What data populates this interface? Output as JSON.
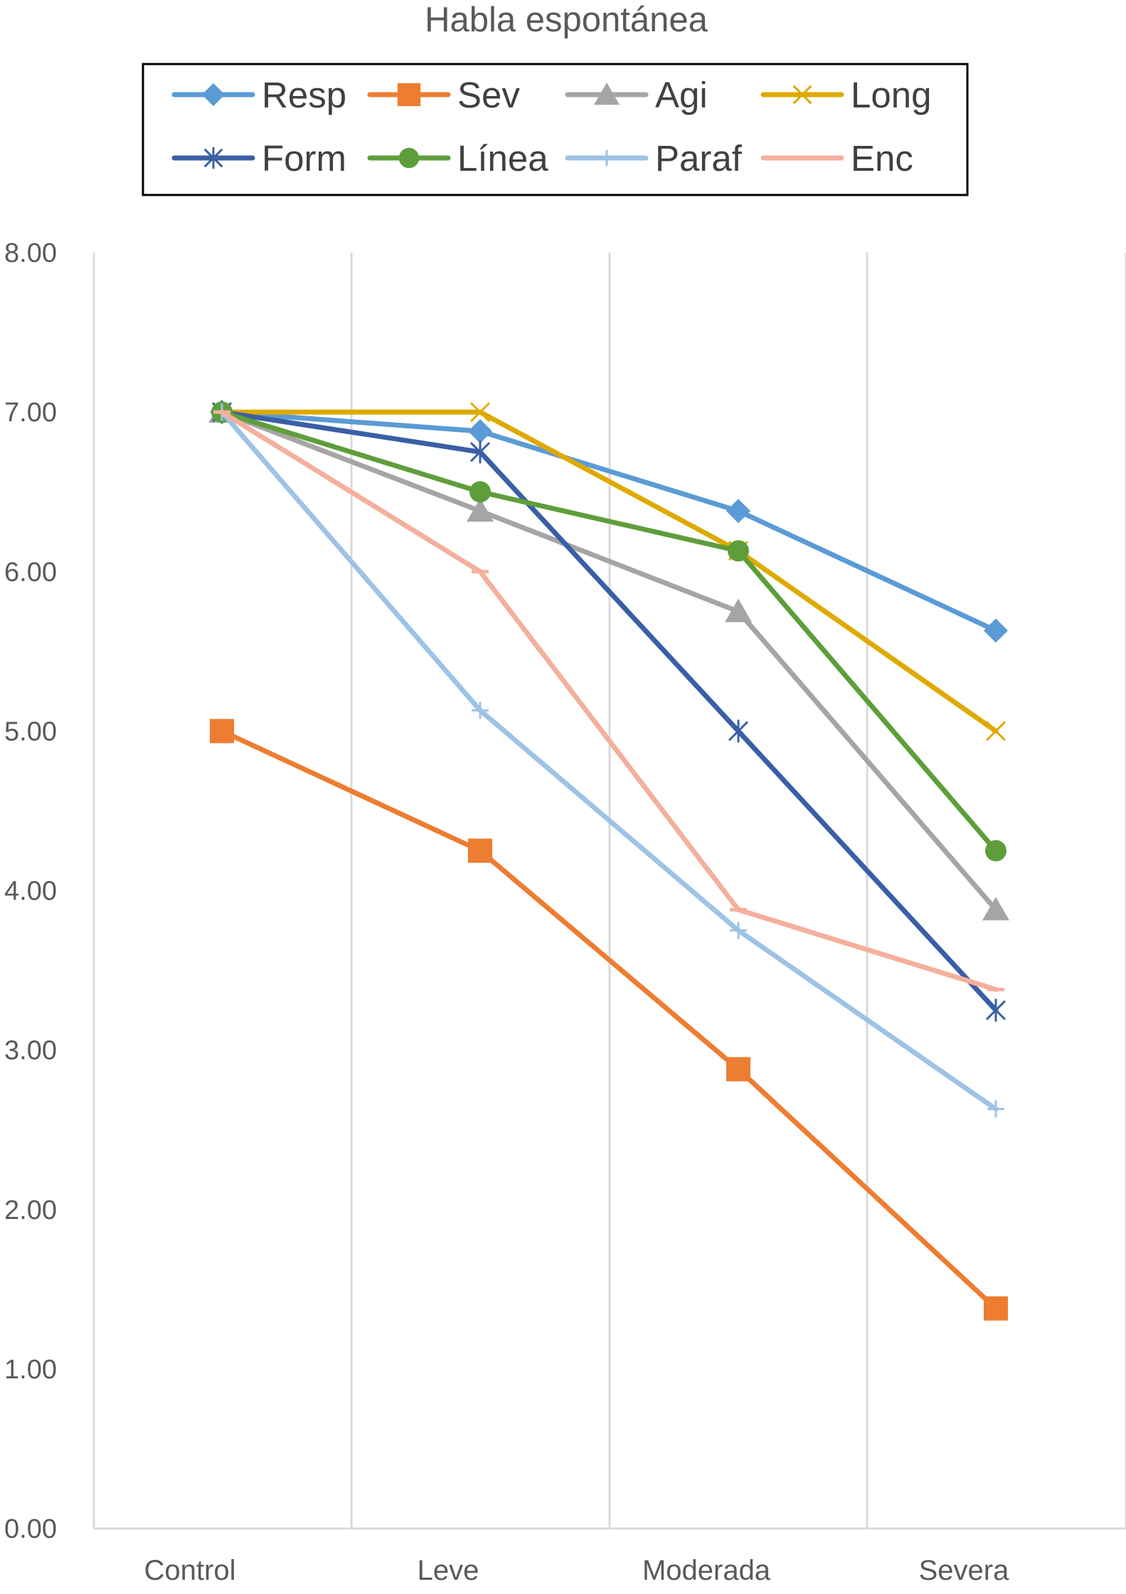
{
  "chart_data": {
    "type": "line",
    "title": "Habla espontánea",
    "xlabel": "",
    "ylabel": "",
    "categories": [
      "Control",
      "Leve",
      "Moderada",
      "Severa"
    ],
    "yticks": [
      "0.00",
      "1.00",
      "2.00",
      "3.00",
      "4.00",
      "5.00",
      "6.00",
      "7.00",
      "8.00"
    ],
    "ylim": [
      0,
      8
    ],
    "grid": "vertical",
    "legend_position": "top",
    "series": [
      {
        "name": "Resp",
        "values": [
          7.0,
          6.88,
          6.38,
          5.63
        ],
        "color": "#5B9BD5",
        "marker": "diamond"
      },
      {
        "name": "Sev",
        "values": [
          5.0,
          4.25,
          2.88,
          1.38
        ],
        "color": "#ED7D31",
        "marker": "square"
      },
      {
        "name": "Agi",
        "values": [
          7.0,
          6.38,
          5.75,
          3.88
        ],
        "color": "#A5A5A5",
        "marker": "triangle"
      },
      {
        "name": "Long",
        "values": [
          7.0,
          7.0,
          6.13,
          5.0
        ],
        "color": "#DDAA00",
        "marker": "x"
      },
      {
        "name": "Form",
        "values": [
          7.0,
          6.75,
          5.0,
          3.25
        ],
        "color": "#3A5FA5",
        "marker": "star"
      },
      {
        "name": "Línea",
        "values": [
          7.0,
          6.5,
          6.13,
          4.25
        ],
        "color": "#5E9E3A",
        "marker": "circle"
      },
      {
        "name": "Paraf",
        "values": [
          7.0,
          5.13,
          3.75,
          2.63
        ],
        "color": "#9DC3E6",
        "marker": "plus"
      },
      {
        "name": "Enc",
        "values": [
          7.0,
          6.0,
          3.88,
          3.38
        ],
        "color": "#F4B09C",
        "marker": "dash"
      }
    ]
  }
}
